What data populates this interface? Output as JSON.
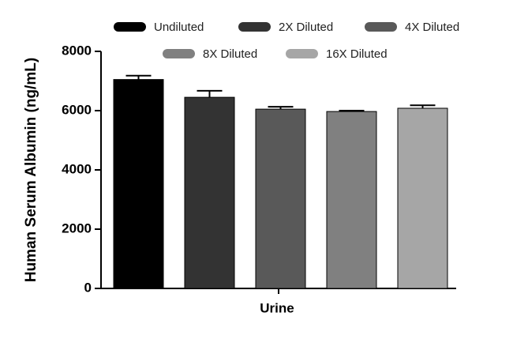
{
  "chart_data": {
    "type": "bar",
    "ylabel": "Human Serum Albumin (ng/mL)",
    "categories": [
      "Urine"
    ],
    "series": [
      {
        "name": "Undiluted",
        "color": "#000000",
        "values": [
          7050
        ],
        "errors": [
          130
        ]
      },
      {
        "name": "2X Diluted",
        "color": "#333333",
        "values": [
          6450
        ],
        "errors": [
          220
        ]
      },
      {
        "name": "4X Diluted",
        "color": "#595959",
        "values": [
          6050
        ],
        "errors": [
          80
        ]
      },
      {
        "name": "8X Diluted",
        "color": "#808080",
        "values": [
          5970
        ],
        "errors": [
          30
        ]
      },
      {
        "name": "16X Diluted",
        "color": "#a6a6a6",
        "values": [
          6080
        ],
        "errors": [
          100
        ]
      }
    ],
    "ylim": [
      0,
      8000
    ],
    "yticks": [
      0,
      2000,
      4000,
      6000,
      8000
    ],
    "grid": false
  }
}
